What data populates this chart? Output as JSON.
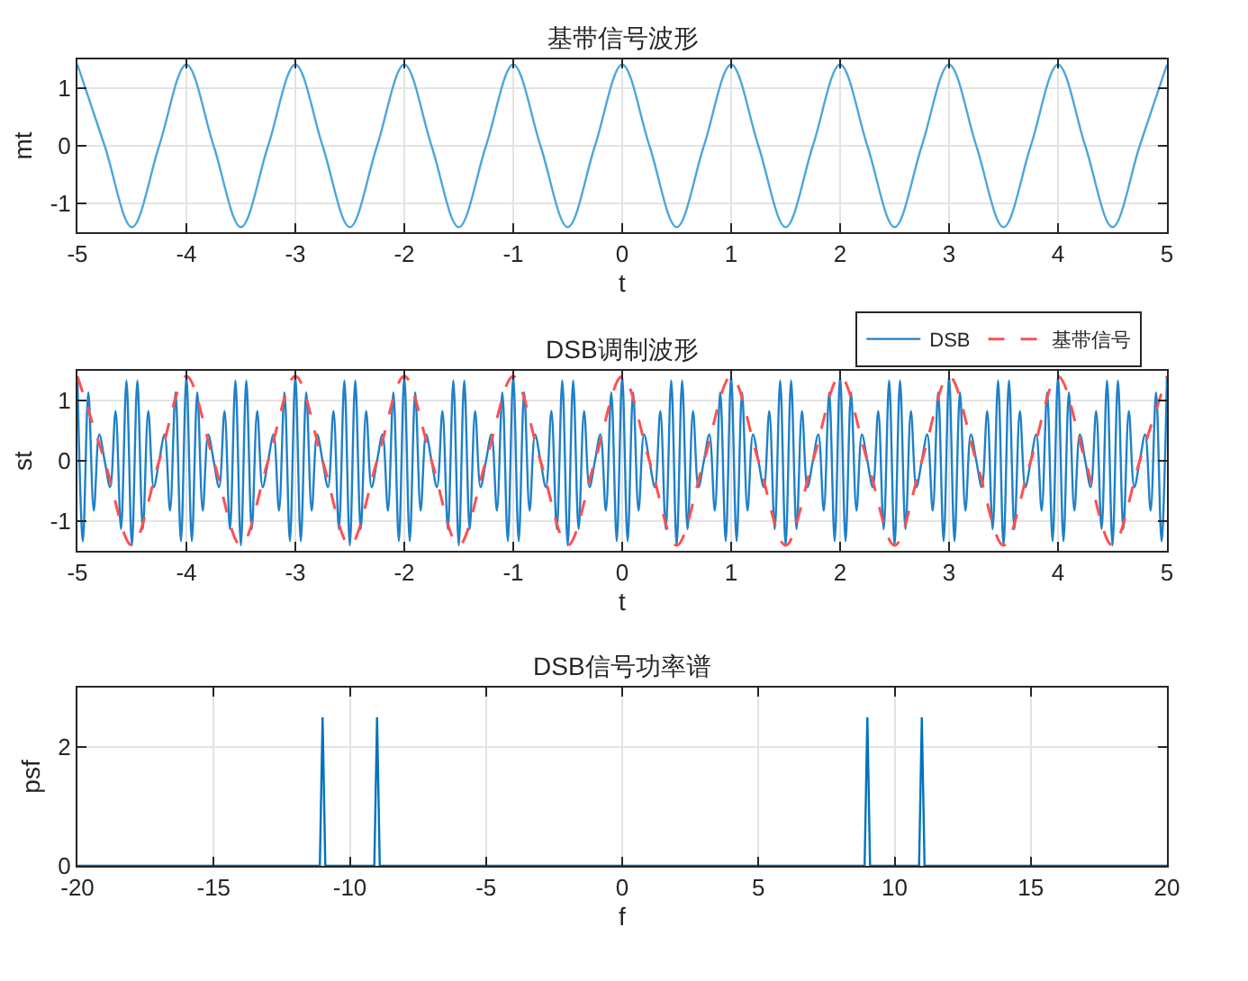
{
  "chart_data": [
    {
      "type": "line",
      "title": "基带信号波形",
      "xlabel": "t",
      "ylabel": "mt",
      "xlim": [
        -5,
        5
      ],
      "xticks": [
        -5,
        -4,
        -3,
        -2,
        -1,
        0,
        1,
        2,
        3,
        4,
        5
      ],
      "ylim": [
        -1.5,
        1.5
      ],
      "yticks": [
        -1,
        0,
        1
      ],
      "grid": true,
      "legend": false,
      "series": [
        {
          "color": "#4da6db",
          "x": [
            -5,
            -4.75,
            -4.5,
            -4.25,
            -4,
            -3.75,
            -3.5,
            -3.25,
            -3,
            -2.75,
            -2.5,
            -2.25,
            -2,
            -1.75,
            -1.5,
            -1.25,
            -1,
            -0.75,
            -0.5,
            -0.25,
            0,
            0.25,
            0.5,
            0.75,
            1,
            1.25,
            1.5,
            1.75,
            2,
            2.25,
            2.5,
            2.75,
            3,
            3.25,
            3.5,
            3.75,
            4,
            4.25,
            4.5,
            4.75,
            5
          ],
          "values": [
            1.41,
            0,
            -1.41,
            0,
            1.41,
            0,
            -1.41,
            0,
            1.41,
            0,
            -1.41,
            0,
            1.41,
            0,
            -1.41,
            0,
            1.41,
            0,
            -1.41,
            0,
            1.41,
            0,
            -1.41,
            0,
            1.41,
            0,
            -1.41,
            0,
            1.41,
            0,
            -1.41,
            0,
            1.41,
            0,
            -1.41,
            0,
            1.41,
            0,
            -1.41,
            0,
            1.41
          ]
        }
      ]
    },
    {
      "type": "line",
      "title": "DSB调制波形",
      "xlabel": "t",
      "ylabel": "st",
      "xlim": [
        -5,
        5
      ],
      "xticks": [
        -5,
        -4,
        -3,
        -2,
        -1,
        0,
        1,
        2,
        3,
        4,
        5
      ],
      "ylim": [
        -1.5,
        1.5
      ],
      "yticks": [
        -1,
        0,
        1
      ],
      "grid": true,
      "legend": "top right",
      "series": [
        {
          "name": "DSB",
          "color": "#1f80c8",
          "line_style": "solid",
          "x": [
            -5,
            -4.95,
            -4.9,
            -4.85,
            -4.8,
            -4.75,
            -4.7,
            -4.65,
            -4.6,
            -4.55,
            -4.5,
            -4.45,
            -4.4,
            -4.35,
            -4.3,
            -4.25,
            -4.2,
            -4.15,
            -4.1,
            -4.05,
            -4,
            -3.95,
            -3.9,
            -3.85,
            -3.8,
            -3.75,
            -3.7,
            -3.65,
            -3.6,
            -3.55,
            -3.5,
            -3.45,
            -3.4,
            -3.35,
            -3.3,
            -3.25,
            -3.2,
            -3.15,
            -3.1,
            -3.05,
            -3,
            -2.95,
            -2.9,
            -2.85,
            -2.8,
            -2.75,
            -2.7,
            -2.65,
            -2.6,
            -2.55,
            -2.5,
            -2.45,
            -2.4,
            -2.35,
            -2.3,
            -2.25,
            -2.2,
            -2.15,
            -2.1,
            -2.05,
            -2,
            -1.95,
            -1.9,
            -1.85,
            -1.8,
            -1.75,
            -1.7,
            -1.65,
            -1.6,
            -1.55,
            -1.5,
            -1.45,
            -1.4,
            -1.35,
            -1.3,
            -1.25,
            -1.2,
            -1.15,
            -1.1,
            -1.05,
            -1,
            -0.95,
            -0.9,
            -0.85,
            -0.8,
            -0.75,
            -0.7,
            -0.65,
            -0.6,
            -0.55,
            -0.5,
            -0.45,
            -0.4,
            -0.35,
            -0.3,
            -0.25,
            -0.2,
            -0.15,
            -0.1,
            -0.05,
            0,
            0.05,
            0.1,
            0.15,
            0.2,
            0.25,
            0.3,
            0.35,
            0.4,
            0.45,
            0.5,
            0.55,
            0.6,
            0.65,
            0.7,
            0.75,
            0.8,
            0.85,
            0.9,
            0.95,
            1,
            1.05,
            1.1,
            1.15,
            1.2,
            1.25,
            1.3,
            1.35,
            1.4,
            1.45,
            1.5,
            1.55,
            1.6,
            1.65,
            1.7,
            1.75,
            1.8,
            1.85,
            1.9,
            1.95,
            2,
            2.05,
            2.1,
            2.15,
            2.2,
            2.25,
            2.3,
            2.35,
            2.4,
            2.45,
            2.5,
            2.55,
            2.6,
            2.65,
            2.7,
            2.75,
            2.8,
            2.85,
            2.9,
            2.95,
            3,
            3.05,
            3.1,
            3.15,
            3.2,
            3.25,
            3.3,
            3.35,
            3.4,
            3.45,
            3.5,
            3.55,
            3.6,
            3.65,
            3.7,
            3.75,
            3.8,
            3.85,
            3.9,
            3.95,
            4,
            4.05,
            4.1,
            4.15,
            4.2,
            4.25,
            4.3,
            4.35,
            4.4,
            4.45,
            4.5,
            4.55,
            4.6,
            4.65,
            4.7,
            4.75,
            4.8,
            4.85,
            4.9,
            4.95,
            5
          ],
          "values": [
            1.41,
            -1.34,
            1.14,
            -0.83,
            0.44,
            0,
            -0.44,
            0.83,
            -1.14,
            1.34,
            -1.41,
            1.34,
            -1.14,
            0.83,
            -0.44,
            0,
            0.44,
            -0.83,
            1.14,
            -1.34,
            1.41,
            -1.34,
            1.14,
            -0.83,
            0.44,
            0,
            -0.44,
            0.83,
            -1.14,
            1.34,
            -1.41,
            1.34,
            -1.14,
            0.83,
            -0.44,
            0,
            0.44,
            -0.83,
            1.14,
            -1.34,
            1.41,
            -1.34,
            1.14,
            -0.83,
            0.44,
            0,
            -0.44,
            0.83,
            -1.14,
            1.34,
            -1.41,
            1.34,
            -1.14,
            0.83,
            -0.44,
            0,
            0.44,
            -0.83,
            1.14,
            -1.34,
            1.41,
            -1.34,
            1.14,
            -0.83,
            0.44,
            0,
            -0.44,
            0.83,
            -1.14,
            1.34,
            -1.41,
            1.34,
            -1.14,
            0.83,
            -0.44,
            0,
            0.44,
            -0.83,
            1.14,
            -1.34,
            1.41,
            -1.34,
            1.14,
            -0.83,
            0.44,
            0,
            -0.44,
            0.83,
            -1.14,
            1.34,
            -1.41,
            1.34,
            -1.14,
            0.83,
            -0.44,
            0,
            0.44,
            -0.83,
            1.14,
            -1.34,
            1.41,
            -1.34,
            1.14,
            -0.83,
            0.44,
            0,
            -0.44,
            0.83,
            -1.14,
            1.34,
            -1.41,
            1.34,
            -1.14,
            0.83,
            -0.44,
            0,
            0.44,
            -0.83,
            1.14,
            -1.34,
            1.41,
            -1.34,
            1.14,
            -0.83,
            0.44,
            0,
            -0.44,
            0.83,
            -1.14,
            1.34,
            -1.41,
            1.34,
            -1.14,
            0.83,
            -0.44,
            0,
            0.44,
            -0.83,
            1.14,
            -1.34,
            1.41,
            -1.34,
            1.14,
            -0.83,
            0.44,
            0,
            -0.44,
            0.83,
            -1.14,
            1.34,
            -1.41,
            1.34,
            -1.14,
            0.83,
            -0.44,
            0,
            0.44,
            -0.83,
            1.14,
            -1.34,
            1.41,
            -1.34,
            1.14,
            -0.83,
            0.44,
            0,
            -0.44,
            0.83,
            -1.14,
            1.34,
            -1.41,
            1.34,
            -1.14,
            0.83,
            -0.44,
            0,
            0.44,
            -0.83,
            1.14,
            -1.34,
            1.41,
            -1.34,
            1.14,
            -0.83,
            0.44,
            0,
            -0.44,
            0.83,
            -1.14,
            1.34,
            -1.41,
            1.34,
            -1.14,
            0.83,
            -0.44,
            0,
            0.44,
            -0.83,
            1.14,
            -1.34,
            1.41
          ]
        },
        {
          "name": "基带信号",
          "color": "#ff5050",
          "line_style": "dashed",
          "x": [
            -5,
            -4.75,
            -4.5,
            -4.25,
            -4,
            -3.75,
            -3.5,
            -3.25,
            -3,
            -2.75,
            -2.5,
            -2.25,
            -2,
            -1.75,
            -1.5,
            -1.25,
            -1,
            -0.75,
            -0.5,
            -0.25,
            0,
            0.25,
            0.5,
            0.75,
            1,
            1.25,
            1.5,
            1.75,
            2,
            2.25,
            2.5,
            2.75,
            3,
            3.25,
            3.5,
            3.75,
            4,
            4.25,
            4.5,
            4.75,
            5
          ],
          "values": [
            1.41,
            0,
            -1.41,
            0,
            1.41,
            0,
            -1.41,
            0,
            1.41,
            0,
            -1.41,
            0,
            1.41,
            0,
            -1.41,
            0,
            1.41,
            0,
            -1.41,
            0,
            1.41,
            0,
            -1.41,
            0,
            1.41,
            0,
            -1.41,
            0,
            1.41,
            0,
            -1.41,
            0,
            1.41,
            0,
            -1.41,
            0,
            1.41,
            0,
            -1.41,
            0,
            1.41
          ]
        }
      ]
    },
    {
      "type": "line",
      "title": "DSB信号功率谱",
      "xlabel": "f",
      "ylabel": "psf",
      "xlim": [
        -20,
        20
      ],
      "xticks": [
        -20,
        -15,
        -10,
        -5,
        0,
        5,
        10,
        15,
        20
      ],
      "ylim": [
        0,
        3
      ],
      "yticks": [
        0,
        2
      ],
      "grid": true,
      "legend": false,
      "series": [
        {
          "color": "#0072bd",
          "x": [
            -20,
            -11.1,
            -11,
            -10.9,
            -9.1,
            -9,
            -8.9,
            8.9,
            9,
            9.1,
            10.9,
            11,
            11.1,
            20
          ],
          "values": [
            0,
            0,
            2.5,
            0,
            0,
            2.5,
            0,
            0,
            2.5,
            0,
            0,
            2.5,
            0,
            0
          ]
        }
      ]
    }
  ]
}
